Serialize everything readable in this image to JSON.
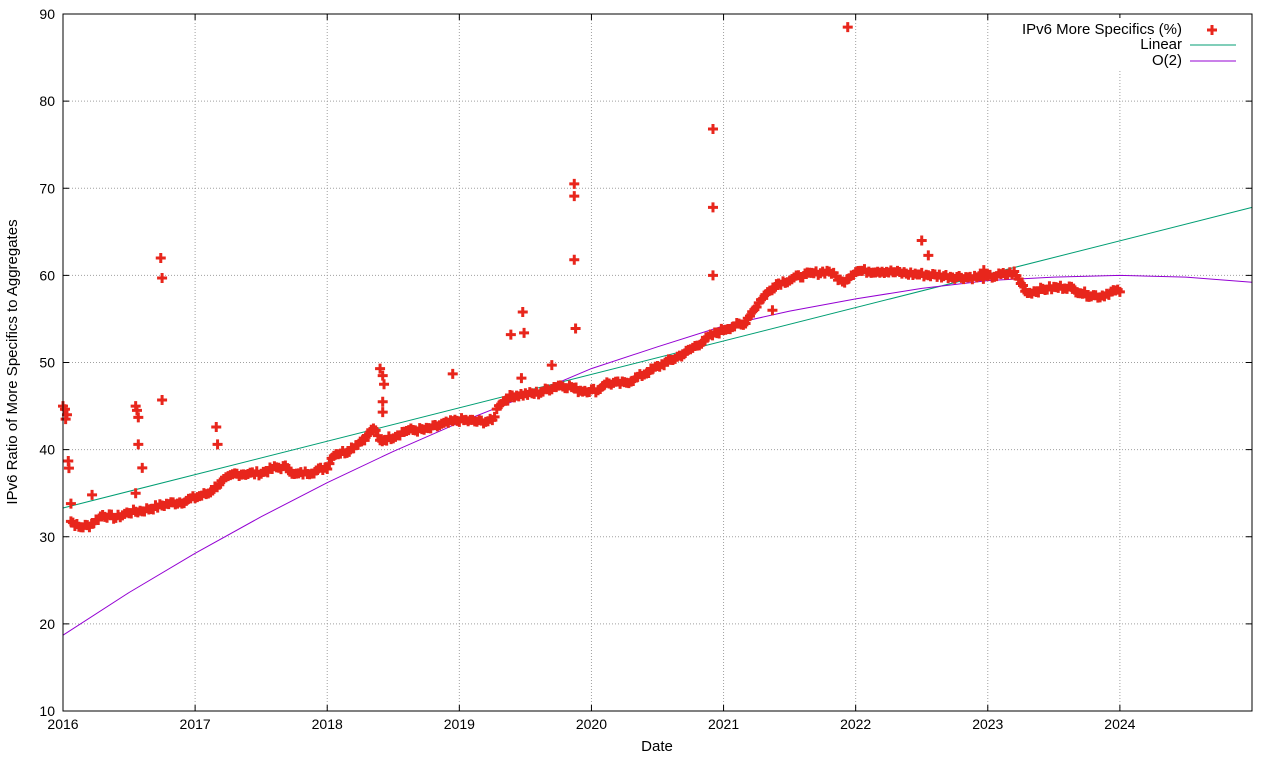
{
  "chart_data": {
    "type": "scatter",
    "xlabel": "Date",
    "ylabel": "IPv6 Ratio of More Specifics to Aggregates",
    "xlim": [
      2016.0,
      2025.0
    ],
    "ylim": [
      10,
      90
    ],
    "grid": true,
    "legend_position": "top-right",
    "x_ticks": [
      2016,
      2017,
      2018,
      2019,
      2020,
      2021,
      2022,
      2023,
      2024
    ],
    "x_tick_labels": [
      "2016",
      "2017",
      "2018",
      "2019",
      "2020",
      "2021",
      "2022",
      "2023",
      "2024"
    ],
    "y_ticks": [
      10,
      20,
      30,
      40,
      50,
      60,
      70,
      80,
      90
    ],
    "y_tick_labels": [
      "10",
      "20",
      "30",
      "40",
      "50",
      "60",
      "70",
      "80",
      "90"
    ],
    "series": [
      {
        "name": "IPv6 More Specifics (%)",
        "kind": "points",
        "marker": "plus",
        "color": "#e8261c",
        "trend": [
          [
            2016.0,
            45.0
          ],
          [
            2016.03,
            44.2
          ],
          [
            2016.06,
            31.8
          ],
          [
            2016.12,
            31.1
          ],
          [
            2016.2,
            31.3
          ],
          [
            2016.3,
            32.5
          ],
          [
            2016.4,
            32.2
          ],
          [
            2016.5,
            32.8
          ],
          [
            2016.6,
            33.0
          ],
          [
            2016.8,
            33.8
          ],
          [
            2016.9,
            34.0
          ],
          [
            2017.0,
            34.5
          ],
          [
            2017.1,
            35.0
          ],
          [
            2017.2,
            36.3
          ],
          [
            2017.3,
            37.2
          ],
          [
            2017.5,
            37.3
          ],
          [
            2017.6,
            37.9
          ],
          [
            2017.7,
            38.0
          ],
          [
            2017.75,
            37.1
          ],
          [
            2017.9,
            37.5
          ],
          [
            2018.0,
            38.0
          ],
          [
            2018.05,
            39.5
          ],
          [
            2018.15,
            39.8
          ],
          [
            2018.3,
            41.5
          ],
          [
            2018.35,
            42.5
          ],
          [
            2018.4,
            41.0
          ],
          [
            2018.5,
            41.5
          ],
          [
            2018.6,
            42.2
          ],
          [
            2018.75,
            42.3
          ],
          [
            2018.85,
            42.8
          ],
          [
            2019.0,
            43.4
          ],
          [
            2019.15,
            43.2
          ],
          [
            2019.25,
            43.3
          ],
          [
            2019.3,
            45.2
          ],
          [
            2019.4,
            46.2
          ],
          [
            2019.6,
            46.5
          ],
          [
            2019.75,
            47.4
          ],
          [
            2019.85,
            47.2
          ],
          [
            2019.9,
            46.8
          ],
          [
            2020.0,
            46.8
          ],
          [
            2020.05,
            46.8
          ],
          [
            2020.1,
            47.6
          ],
          [
            2020.25,
            47.6
          ],
          [
            2020.35,
            48.3
          ],
          [
            2020.5,
            49.5
          ],
          [
            2020.7,
            51.0
          ],
          [
            2020.8,
            52.0
          ],
          [
            2020.9,
            53.0
          ],
          [
            2021.0,
            53.8
          ],
          [
            2021.1,
            54.3
          ],
          [
            2021.15,
            54.3
          ],
          [
            2021.2,
            55.5
          ],
          [
            2021.3,
            57.5
          ],
          [
            2021.4,
            59.0
          ],
          [
            2021.6,
            60.0
          ],
          [
            2021.8,
            60.5
          ],
          [
            2021.9,
            59.2
          ],
          [
            2022.0,
            60.5
          ],
          [
            2022.2,
            60.5
          ],
          [
            2022.4,
            60.2
          ],
          [
            2022.6,
            60.0
          ],
          [
            2022.8,
            59.8
          ],
          [
            2023.0,
            59.8
          ],
          [
            2023.2,
            60.3
          ],
          [
            2023.3,
            58.0
          ],
          [
            2023.45,
            58.5
          ],
          [
            2023.6,
            58.7
          ],
          [
            2023.75,
            57.8
          ],
          [
            2023.85,
            57.6
          ],
          [
            2023.95,
            58.2
          ],
          [
            2024.0,
            58.1
          ]
        ],
        "outliers": [
          [
            2016.02,
            43.5
          ],
          [
            2016.04,
            38.7
          ],
          [
            2016.06,
            33.8
          ],
          [
            2016.22,
            34.8
          ],
          [
            2016.55,
            45.0
          ],
          [
            2016.56,
            44.5
          ],
          [
            2016.57,
            43.7
          ],
          [
            2016.57,
            40.6
          ],
          [
            2016.6,
            37.9
          ],
          [
            2016.55,
            35.0
          ],
          [
            2016.74,
            62.0
          ],
          [
            2016.75,
            59.7
          ],
          [
            2016.75,
            45.7
          ],
          [
            2017.16,
            42.6
          ],
          [
            2017.17,
            40.6
          ],
          [
            2018.4,
            49.3
          ],
          [
            2018.42,
            48.5
          ],
          [
            2018.43,
            47.5
          ],
          [
            2018.42,
            45.5
          ],
          [
            2018.42,
            44.3
          ],
          [
            2018.95,
            48.7
          ],
          [
            2019.39,
            53.2
          ],
          [
            2019.48,
            55.8
          ],
          [
            2019.49,
            53.4
          ],
          [
            2019.47,
            48.2
          ],
          [
            2019.7,
            49.7
          ],
          [
            2019.87,
            70.5
          ],
          [
            2019.87,
            69.1
          ],
          [
            2019.87,
            61.8
          ],
          [
            2019.88,
            53.9
          ],
          [
            2020.92,
            76.8
          ],
          [
            2020.92,
            67.8
          ],
          [
            2020.92,
            60.0
          ],
          [
            2021.37,
            56.0
          ],
          [
            2021.94,
            88.5
          ],
          [
            2022.5,
            64.0
          ],
          [
            2022.55,
            62.3
          ],
          [
            2022.97,
            60.6
          ]
        ]
      },
      {
        "name": "Linear",
        "kind": "line",
        "color": "#009e73",
        "points": [
          [
            2016.0,
            33.3
          ],
          [
            2025.0,
            67.8
          ]
        ]
      },
      {
        "name": "O(2)",
        "kind": "line",
        "color": "#9400d3",
        "points": [
          [
            2016.0,
            18.7
          ],
          [
            2016.5,
            23.6
          ],
          [
            2017.0,
            28.1
          ],
          [
            2017.5,
            32.3
          ],
          [
            2018.0,
            36.2
          ],
          [
            2018.5,
            39.8
          ],
          [
            2019.0,
            43.1
          ],
          [
            2019.5,
            46.1
          ],
          [
            2020.0,
            49.3
          ],
          [
            2020.5,
            51.8
          ],
          [
            2021.0,
            54.2
          ],
          [
            2021.5,
            55.9
          ],
          [
            2022.0,
            57.3
          ],
          [
            2022.5,
            58.5
          ],
          [
            2023.0,
            59.4
          ],
          [
            2023.5,
            59.8
          ],
          [
            2024.0,
            60.0
          ],
          [
            2024.5,
            59.8
          ],
          [
            2025.0,
            59.2
          ]
        ]
      }
    ]
  }
}
